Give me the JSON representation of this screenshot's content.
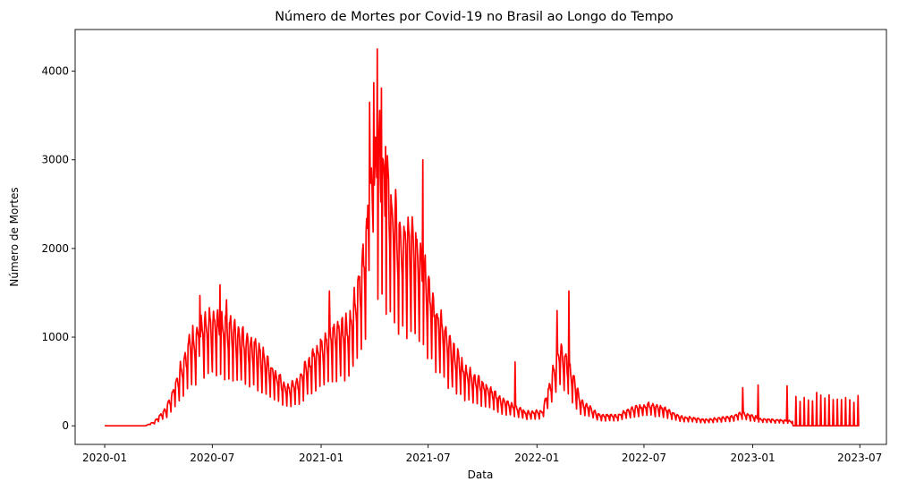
{
  "chart_data": {
    "type": "line",
    "title": "Número de Mortes por Covid-19 no Brasil ao Longo do Tempo",
    "xlabel": "Data",
    "ylabel": "Número de Mortes",
    "x_ticks": [
      "2020-01",
      "2020-07",
      "2021-01",
      "2021-07",
      "2022-01",
      "2022-07",
      "2023-01",
      "2023-07"
    ],
    "y_ticks": [
      0,
      1000,
      2000,
      3000,
      4000
    ],
    "xlim": [
      "2019-11-12",
      "2023-08-15"
    ],
    "ylim": [
      -210,
      4470
    ],
    "grid": false,
    "line_color": "#ff0000",
    "series": [
      {
        "x_start": "2020-01-01",
        "x_end": "2023-06-30",
        "profile": [
          [
            "2020-01-01",
            0
          ],
          [
            "2020-03-10",
            0
          ],
          [
            "2020-03-25",
            40
          ],
          [
            "2020-04-15",
            180
          ],
          [
            "2020-05-05",
            520
          ],
          [
            "2020-05-25",
            850
          ],
          [
            "2020-06-15",
            980
          ],
          [
            "2020-07-05",
            1040
          ],
          [
            "2020-07-25",
            1020
          ],
          [
            "2020-08-20",
            900
          ],
          [
            "2020-09-15",
            760
          ],
          [
            "2020-10-10",
            560
          ],
          [
            "2020-11-05",
            380
          ],
          [
            "2020-11-25",
            470
          ],
          [
            "2020-12-20",
            720
          ],
          [
            "2021-01-10",
            900
          ],
          [
            "2021-01-30",
            980
          ],
          [
            "2021-02-20",
            1020
          ],
          [
            "2021-03-10",
            1550
          ],
          [
            "2021-03-25",
            2300
          ],
          [
            "2021-04-08",
            2850
          ],
          [
            "2021-04-20",
            2500
          ],
          [
            "2021-05-10",
            1950
          ],
          [
            "2021-06-01",
            1850
          ],
          [
            "2021-06-20",
            1750
          ],
          [
            "2021-07-10",
            1200
          ],
          [
            "2021-08-05",
            820
          ],
          [
            "2021-09-01",
            560
          ],
          [
            "2021-10-01",
            420
          ],
          [
            "2021-11-01",
            260
          ],
          [
            "2021-12-15",
            130
          ],
          [
            "2022-01-10",
            150
          ],
          [
            "2022-01-25",
            450
          ],
          [
            "2022-02-08",
            800
          ],
          [
            "2022-02-25",
            600
          ],
          [
            "2022-03-15",
            250
          ],
          [
            "2022-04-15",
            110
          ],
          [
            "2022-05-15",
            100
          ],
          [
            "2022-06-15",
            180
          ],
          [
            "2022-07-10",
            210
          ],
          [
            "2022-08-05",
            170
          ],
          [
            "2022-09-01",
            90
          ],
          [
            "2022-10-15",
            60
          ],
          [
            "2022-11-25",
            90
          ],
          [
            "2022-12-15",
            130
          ],
          [
            "2023-01-15",
            70
          ],
          [
            "2023-03-01",
            50
          ],
          [
            "2023-06-30",
            30
          ]
        ],
        "weekly_pattern": [
          0.55,
          1.12,
          1.22,
          1.18,
          1.1,
          1.0,
          0.83
        ],
        "peaks": [
          [
            "2020-06-10",
            1470
          ],
          [
            "2020-07-14",
            1590
          ],
          [
            "2020-07-25",
            1420
          ],
          [
            "2021-01-15",
            1520
          ],
          [
            "2021-03-24",
            3650
          ],
          [
            "2021-03-31",
            3870
          ],
          [
            "2021-04-06",
            4250
          ],
          [
            "2021-04-13",
            3810
          ],
          [
            "2021-04-20",
            3150
          ],
          [
            "2021-06-22",
            3000
          ],
          [
            "2021-11-25",
            720
          ],
          [
            "2022-02-04",
            1300
          ],
          [
            "2022-02-24",
            1520
          ],
          [
            "2022-12-15",
            430
          ],
          [
            "2023-01-10",
            460
          ],
          [
            "2023-02-28",
            450
          ]
        ],
        "spikes_after": "2023-03-10",
        "spike_interval_days": 7,
        "spike_value": 320
      }
    ]
  }
}
